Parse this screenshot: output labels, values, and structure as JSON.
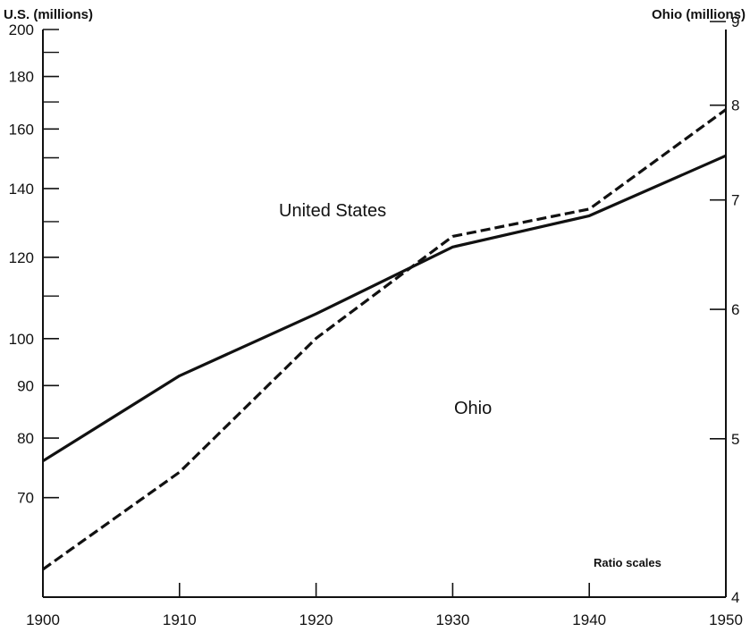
{
  "chart_data": {
    "type": "line",
    "title": "",
    "x": [
      1900,
      1910,
      1920,
      1930,
      1940,
      1950
    ],
    "xlim": [
      1900,
      1950
    ],
    "x_ticks": [
      "1900",
      "1910",
      "1920",
      "1930",
      "1940",
      "1950"
    ],
    "y_scale": "log",
    "left_axis": {
      "label": "U.S. (millions)",
      "lim": [
        56,
        200
      ],
      "tick_labels": [
        200,
        180,
        160,
        140,
        120,
        100,
        90,
        80,
        70
      ],
      "minor_ticks": [
        190,
        170,
        150,
        130,
        110
      ]
    },
    "right_axis": {
      "label": "Ohio (millions)",
      "lim": [
        4,
        8.9
      ],
      "tick_labels": [
        9,
        8,
        7,
        6,
        5,
        4
      ]
    },
    "series": [
      {
        "name": "United States",
        "axis": "left",
        "style": "solid",
        "values": [
          76.0,
          92.0,
          105.7,
          122.8,
          131.7,
          150.7
        ]
      },
      {
        "name": "Ohio",
        "axis": "right",
        "style": "dashed",
        "values": [
          4.16,
          4.77,
          5.76,
          6.65,
          6.91,
          7.95
        ]
      }
    ],
    "annotation": "Ratio scales",
    "grid": false
  }
}
